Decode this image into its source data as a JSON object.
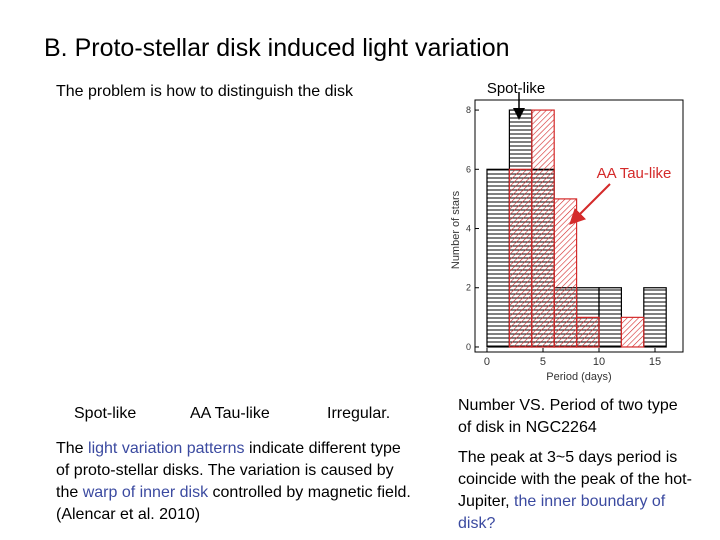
{
  "title": "B. Proto-stellar disk induced light variation",
  "intro": "The problem is how to distinguish the disk",
  "pattern_labels": [
    "Spot-like",
    "AA Tau-like",
    "Irregular."
  ],
  "left_text": {
    "parts": [
      "The ",
      "light variation patterns",
      " indicate different type of proto-stellar disks. The variation is caused by the ",
      "warp of inner disk",
      " controlled by magnetic field. (Alencar et al. 2010)"
    ]
  },
  "caption": "Number VS. Period of two type of disk in NGC2264",
  "right_text": {
    "parts": [
      "The peak at 3~5 days period is coincide with the peak of the hot-Jupiter, ",
      "the inner boundary of disk?"
    ]
  },
  "chart_data": {
    "type": "histogram",
    "bins": [
      0,
      2,
      4,
      6,
      8,
      10,
      12,
      14,
      16
    ],
    "series": [
      {
        "name": "Spot-like",
        "color": "#000000",
        "values": [
          6,
          8,
          6,
          2,
          2,
          2,
          0,
          2
        ]
      },
      {
        "name": "AA Tau-like",
        "color": "#d42a2a",
        "values": [
          0,
          6,
          8,
          5,
          1,
          0,
          1,
          0
        ]
      }
    ],
    "xlim": [
      -1.07,
      17.5
    ],
    "ylim": [
      -0.17,
      8.34
    ],
    "xticks": [
      0,
      5,
      10,
      15
    ],
    "yticks": [
      0,
      2,
      4,
      6,
      8
    ],
    "x_label": "Period (days)",
    "y_label": "Number of stars"
  }
}
